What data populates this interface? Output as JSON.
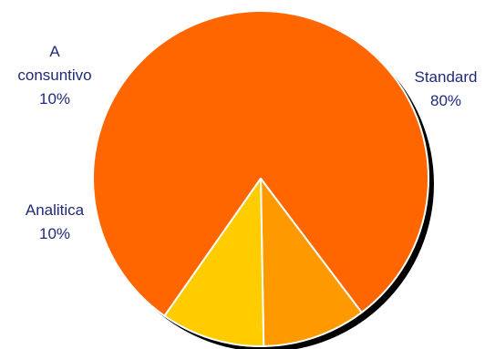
{
  "chart_data": {
    "type": "pie",
    "title": "",
    "start_angle_deg": 235,
    "direction": "clockwise",
    "shadow": true,
    "slices": [
      {
        "name": "Standard",
        "value": 80,
        "label_lines": [
          "Standard",
          "80%"
        ],
        "color": "#ff6600"
      },
      {
        "name": "Analitica",
        "value": 10,
        "label_lines": [
          "Analitica",
          "10%"
        ],
        "color": "#ff9900"
      },
      {
        "name": "A consuntivo",
        "value": 10,
        "label_lines": [
          "A",
          "consuntivo",
          "10%"
        ],
        "color": "#ffcc00"
      }
    ]
  }
}
